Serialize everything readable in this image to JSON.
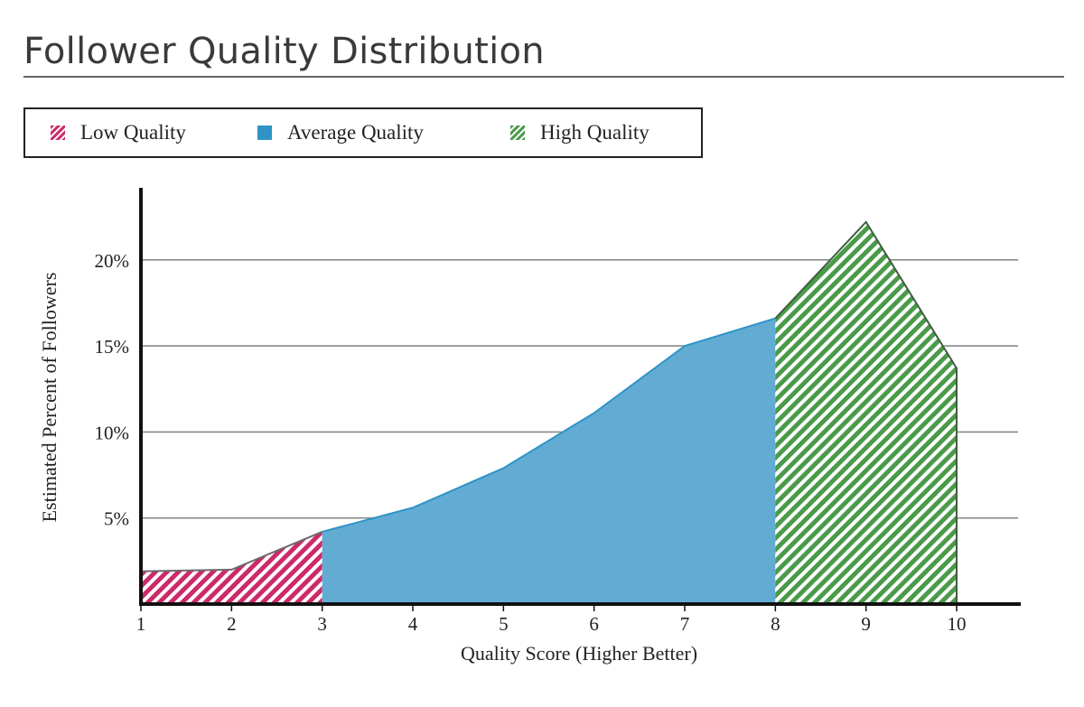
{
  "title": "Follower Quality Distribution",
  "legend": {
    "items": [
      {
        "label": "Low Quality",
        "color": "#cc2a6a",
        "pattern": "hatch"
      },
      {
        "label": "Average Quality",
        "color": "#2f93c6",
        "pattern": "solid"
      },
      {
        "label": "High Quality",
        "color": "#4a9a4a",
        "pattern": "hatch"
      }
    ]
  },
  "chart_data": {
    "type": "area",
    "x": [
      1,
      2,
      3,
      4,
      5,
      6,
      7,
      8,
      9,
      10
    ],
    "y": [
      1.9,
      2.0,
      4.2,
      5.6,
      7.9,
      11.1,
      15.0,
      16.6,
      22.2,
      13.7
    ],
    "segments": [
      {
        "name": "Low Quality",
        "from": 1,
        "to": 3,
        "fill": "#cc2a6a",
        "pattern": "hatch"
      },
      {
        "name": "Average Quality",
        "from": 3,
        "to": 8,
        "fill": "#62acd4",
        "pattern": "solid"
      },
      {
        "name": "High Quality",
        "from": 8,
        "to": 10,
        "fill": "#4a9a4a",
        "pattern": "hatch"
      }
    ],
    "xlabel": "Quality Score (Higher Better)",
    "ylabel": "Estimated Percent of Followers",
    "x_ticks": [
      "1",
      "2",
      "3",
      "4",
      "5",
      "6",
      "7",
      "8",
      "9",
      "10"
    ],
    "y_ticks": [
      {
        "value": 5,
        "label": "5%"
      },
      {
        "value": 10,
        "label": "10%"
      },
      {
        "value": 15,
        "label": "15%"
      },
      {
        "value": 20,
        "label": "20%"
      }
    ],
    "xlim": [
      1,
      10
    ],
    "ylim": [
      0,
      25
    ],
    "grid": true
  }
}
